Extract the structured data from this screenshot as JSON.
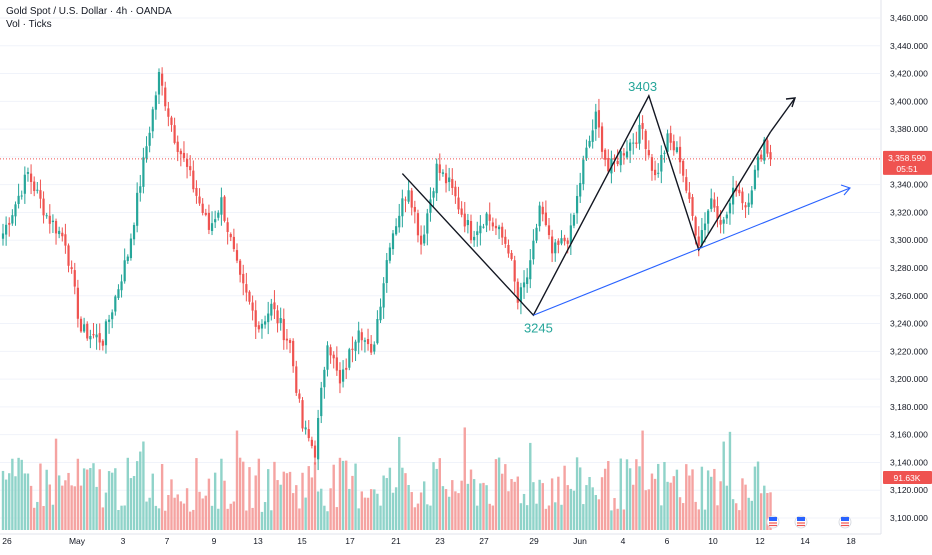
{
  "header": {
    "symbol_line": "Gold Spot / U.S. Dollar · 4h · OANDA",
    "volume_line": "Vol · Ticks"
  },
  "price_tag": {
    "price": "3,358.590",
    "countdown": "05:51"
  },
  "volume_tag": "91.63K",
  "colors": {
    "up": "#26a69a",
    "down": "#ef5350",
    "vol_up": "#8fd3c9",
    "vol_down": "#f5a3a1",
    "pattern": "#131722",
    "trend": "#2962ff",
    "label": "#26a69a",
    "price_line": "#ef5350"
  },
  "chart_data": {
    "type": "candlestick",
    "y_axis_ticks": [
      "3,460.000",
      "3,440.000",
      "3,420.000",
      "3,400.000",
      "3,380.000",
      "3,360.000",
      "3,340.000",
      "3,320.000",
      "3,300.000",
      "3,280.000",
      "3,260.000",
      "3,240.000",
      "3,220.000",
      "3,200.000",
      "3,180.000",
      "3,160.000",
      "3,140.000",
      "3,120.000",
      "3,100.000"
    ],
    "ylim": [
      3098,
      3470
    ],
    "x_axis_ticks": [
      "26",
      "May",
      "3",
      "7",
      "9",
      "13",
      "15",
      "17",
      "21",
      "23",
      "27",
      "29",
      "Jun",
      "4",
      "6",
      "10",
      "12",
      "14",
      "18"
    ],
    "current_price": 3358.59,
    "annotations": [
      {
        "text": "3403",
        "value": 3403
      },
      {
        "text": "3245",
        "value": 3245
      }
    ],
    "waypoints": [
      {
        "bar": 0,
        "price": 3305
      },
      {
        "bar": 8,
        "price": 3348
      },
      {
        "bar": 14,
        "price": 3318
      },
      {
        "bar": 20,
        "price": 3300
      },
      {
        "bar": 25,
        "price": 3235
      },
      {
        "bar": 32,
        "price": 3228
      },
      {
        "bar": 40,
        "price": 3290
      },
      {
        "bar": 46,
        "price": 3368
      },
      {
        "bar": 50,
        "price": 3418
      },
      {
        "bar": 55,
        "price": 3375
      },
      {
        "bar": 60,
        "price": 3345
      },
      {
        "bar": 66,
        "price": 3308
      },
      {
        "bar": 70,
        "price": 3328
      },
      {
        "bar": 76,
        "price": 3270
      },
      {
        "bar": 82,
        "price": 3238
      },
      {
        "bar": 86,
        "price": 3252
      },
      {
        "bar": 92,
        "price": 3225
      },
      {
        "bar": 96,
        "price": 3165
      },
      {
        "bar": 100,
        "price": 3148
      },
      {
        "bar": 104,
        "price": 3230
      },
      {
        "bar": 108,
        "price": 3195
      },
      {
        "bar": 114,
        "price": 3240
      },
      {
        "bar": 118,
        "price": 3215
      },
      {
        "bar": 124,
        "price": 3300
      },
      {
        "bar": 130,
        "price": 3340
      },
      {
        "bar": 134,
        "price": 3298
      },
      {
        "bar": 139,
        "price": 3352
      },
      {
        "bar": 143,
        "price": 3340
      },
      {
        "bar": 150,
        "price": 3305
      },
      {
        "bar": 155,
        "price": 3318
      },
      {
        "bar": 162,
        "price": 3295
      },
      {
        "bar": 165,
        "price": 3255
      },
      {
        "bar": 169,
        "price": 3280
      },
      {
        "bar": 172,
        "price": 3325
      },
      {
        "bar": 176,
        "price": 3290
      },
      {
        "bar": 182,
        "price": 3305
      },
      {
        "bar": 186,
        "price": 3355
      },
      {
        "bar": 190,
        "price": 3388
      },
      {
        "bar": 194,
        "price": 3350
      },
      {
        "bar": 199,
        "price": 3365
      },
      {
        "bar": 205,
        "price": 3380
      },
      {
        "bar": 209,
        "price": 3345
      },
      {
        "bar": 213,
        "price": 3372
      },
      {
        "bar": 217,
        "price": 3360
      },
      {
        "bar": 220,
        "price": 3325
      },
      {
        "bar": 223,
        "price": 3300
      },
      {
        "bar": 227,
        "price": 3330
      },
      {
        "bar": 231,
        "price": 3312
      },
      {
        "bar": 235,
        "price": 3340
      },
      {
        "bar": 238,
        "price": 3325
      },
      {
        "bar": 241,
        "price": 3348
      },
      {
        "bar": 244,
        "price": 3372
      },
      {
        "bar": 246,
        "price": 3358
      }
    ]
  }
}
